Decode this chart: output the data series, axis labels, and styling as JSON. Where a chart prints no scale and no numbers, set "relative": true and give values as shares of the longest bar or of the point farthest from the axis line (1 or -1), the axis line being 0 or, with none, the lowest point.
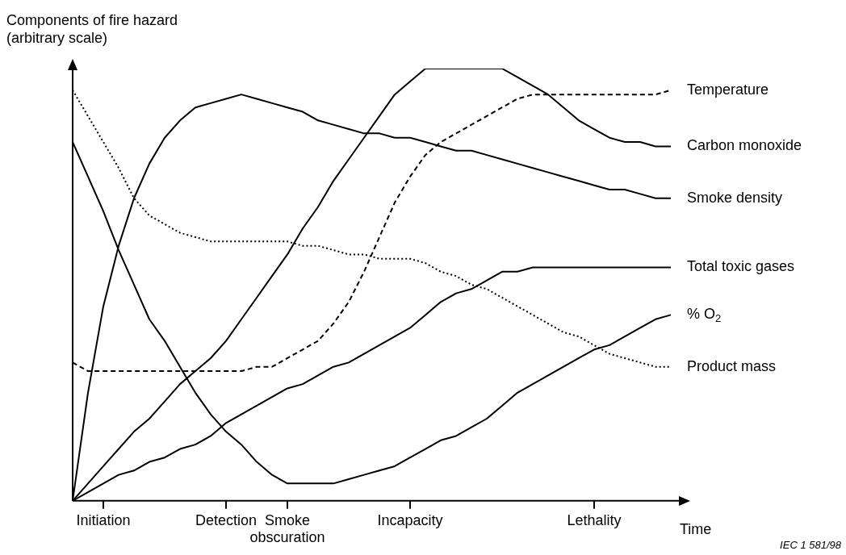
{
  "chart_data": {
    "type": "line",
    "ylabel": "Components of fire hazard\n(arbitrary scale)",
    "xlabel": "Time",
    "relative": true,
    "grid": false,
    "legend": false,
    "marker": "none",
    "categories": [
      null,
      null,
      "Initiation",
      null,
      null,
      null,
      null,
      null,
      null,
      null,
      "Detection",
      null,
      null,
      null,
      "Smoke obscuration",
      null,
      null,
      null,
      null,
      null,
      null,
      null,
      "Incapacity",
      null,
      null,
      null,
      null,
      null,
      null,
      null,
      null,
      null,
      null,
      null,
      "Lethality",
      null,
      null,
      null,
      null,
      null
    ],
    "annotations": [
      "IEC 1 581/98"
    ],
    "series": [
      {
        "name": "Temperature",
        "color": "#000000",
        "line_style": "dashed",
        "values": [
          0.32,
          0.3,
          0.3,
          0.3,
          0.3,
          0.3,
          0.3,
          0.3,
          0.3,
          0.3,
          0.3,
          0.3,
          0.31,
          0.31,
          0.33,
          0.35,
          0.37,
          0.41,
          0.46,
          0.53,
          0.61,
          0.69,
          0.75,
          0.8,
          0.83,
          0.85,
          0.87,
          0.89,
          0.91,
          0.93,
          0.94,
          0.94,
          0.94,
          0.94,
          0.94,
          0.94,
          0.94,
          0.94,
          0.94,
          0.95
        ]
      },
      {
        "name": "Carbon monoxide",
        "color": "#000000",
        "line_style": "solid",
        "values": [
          0,
          0.04,
          0.08,
          0.12,
          0.16,
          0.19,
          0.23,
          0.27,
          0.3,
          0.33,
          0.37,
          0.42,
          0.47,
          0.52,
          0.57,
          0.63,
          0.68,
          0.74,
          0.79,
          0.84,
          0.89,
          0.94,
          0.97,
          1,
          1,
          1,
          1,
          1,
          1,
          0.98,
          0.96,
          0.94,
          0.91,
          0.88,
          0.86,
          0.84,
          0.83,
          0.83,
          0.82,
          0.82
        ]
      },
      {
        "name": "Smoke density",
        "color": "#000000",
        "line_style": "solid",
        "values": [
          0,
          0.25,
          0.45,
          0.59,
          0.7,
          0.78,
          0.84,
          0.88,
          0.91,
          0.92,
          0.93,
          0.94,
          0.93,
          0.92,
          0.91,
          0.9,
          0.88,
          0.87,
          0.86,
          0.85,
          0.85,
          0.84,
          0.84,
          0.83,
          0.82,
          0.81,
          0.81,
          0.8,
          0.79,
          0.78,
          0.77,
          0.76,
          0.75,
          0.74,
          0.73,
          0.72,
          0.72,
          0.71,
          0.7,
          0.7
        ]
      },
      {
        "name": "Total toxic gases",
        "color": "#000000",
        "line_style": "solid",
        "values": [
          0,
          0.02,
          0.04,
          0.06,
          0.07,
          0.09,
          0.1,
          0.12,
          0.13,
          0.15,
          0.18,
          0.2,
          0.22,
          0.24,
          0.26,
          0.27,
          0.29,
          0.31,
          0.32,
          0.34,
          0.36,
          0.38,
          0.4,
          0.43,
          0.46,
          0.48,
          0.49,
          0.51,
          0.53,
          0.53,
          0.54,
          0.54,
          0.54,
          0.54,
          0.54,
          0.54,
          0.54,
          0.54,
          0.54,
          0.54
        ]
      },
      {
        "name": "% O$_{2}$",
        "color": "#000000",
        "line_style": "solid",
        "values": [
          0.83,
          0.75,
          0.67,
          0.58,
          0.5,
          0.42,
          0.37,
          0.31,
          0.25,
          0.2,
          0.16,
          0.13,
          0.09,
          0.06,
          0.04,
          0.04,
          0.04,
          0.04,
          0.05,
          0.06,
          0.07,
          0.08,
          0.1,
          0.12,
          0.14,
          0.15,
          0.17,
          0.19,
          0.22,
          0.25,
          0.27,
          0.29,
          0.31,
          0.33,
          0.35,
          0.36,
          0.38,
          0.4,
          0.42,
          0.43
        ]
      },
      {
        "name": "Product mass",
        "color": "#000000",
        "line_style": "dotted",
        "values": [
          0.95,
          0.89,
          0.83,
          0.77,
          0.7,
          0.66,
          0.64,
          0.62,
          0.61,
          0.6,
          0.6,
          0.6,
          0.6,
          0.6,
          0.6,
          0.59,
          0.59,
          0.58,
          0.57,
          0.57,
          0.56,
          0.56,
          0.56,
          0.55,
          0.53,
          0.52,
          0.5,
          0.49,
          0.47,
          0.45,
          0.43,
          0.41,
          0.39,
          0.38,
          0.36,
          0.34,
          0.33,
          0.32,
          0.31,
          0.31
        ]
      }
    ]
  }
}
